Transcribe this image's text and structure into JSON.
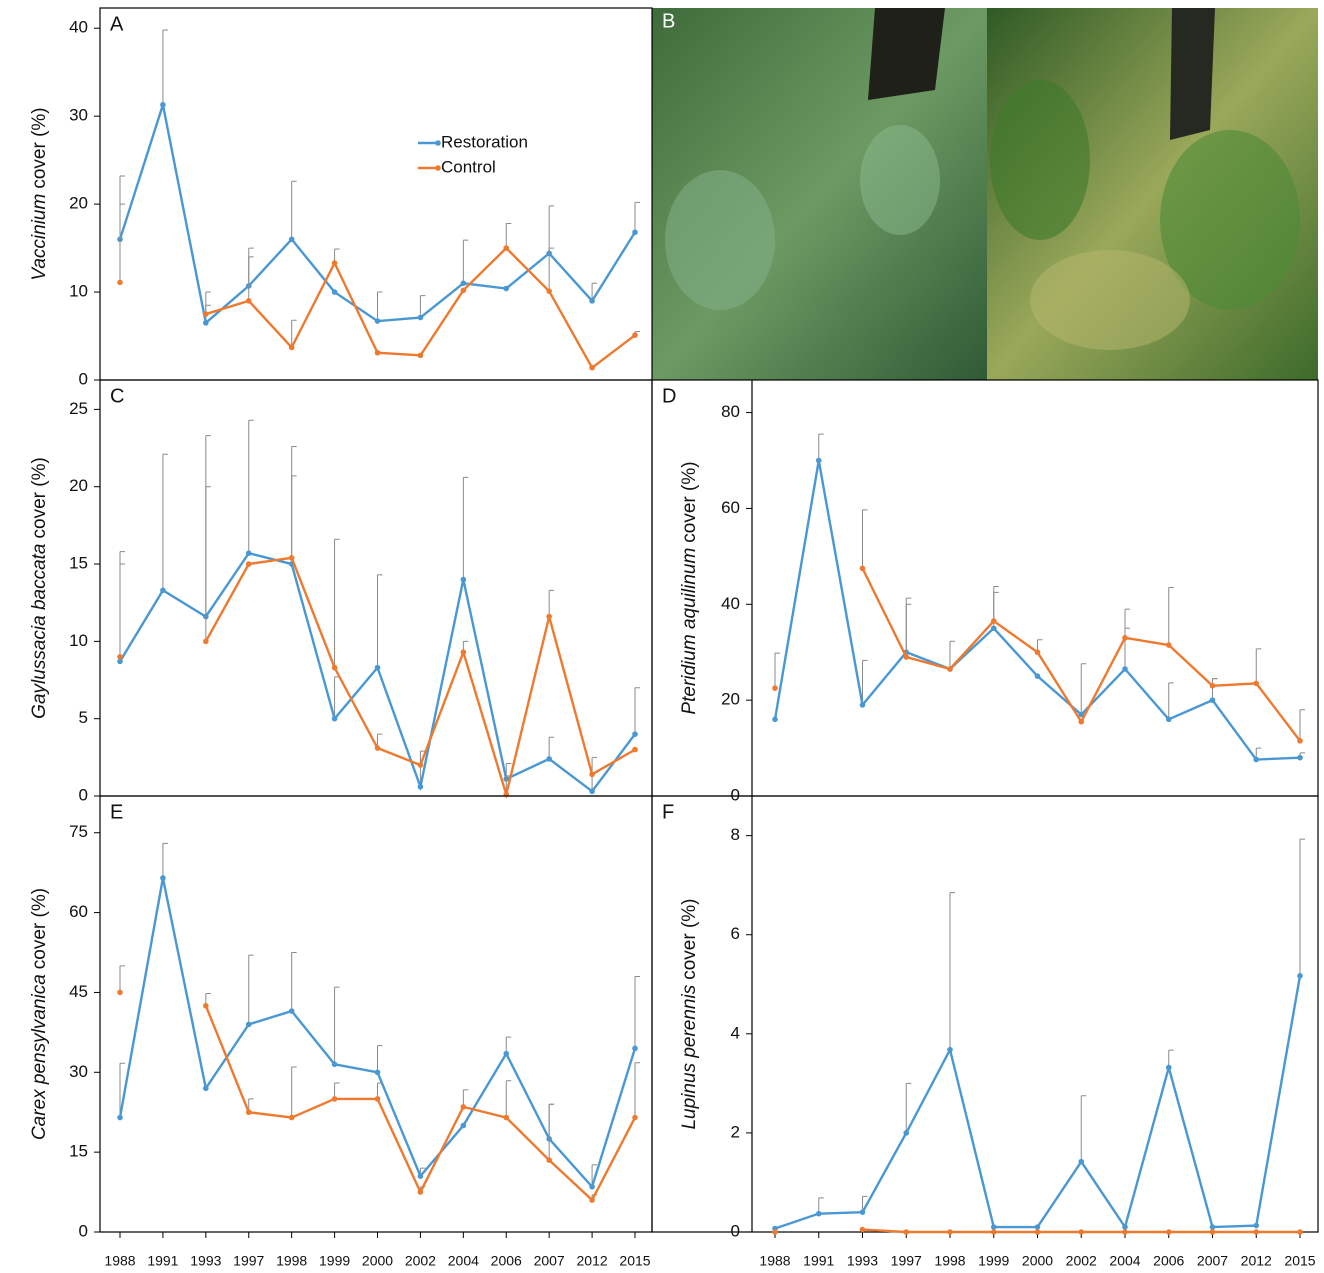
{
  "photo_panel": {
    "label": "B"
  },
  "chart_data": [
    {
      "type": "line",
      "label": "A",
      "ylabel_italic": "Vaccinium",
      "ylabel": "cover (%)",
      "ylim": [
        0,
        42.3
      ],
      "yticks": [
        0,
        10,
        20,
        30,
        40
      ],
      "legend": true,
      "series": [
        {
          "name": "Restoration",
          "color": "#4a98d3",
          "values": [
            16,
            31.3,
            6.5,
            10.7,
            16,
            10,
            6.7,
            7.1,
            11,
            10.4,
            14.4,
            9,
            16.8
          ],
          "errors": [
            7.2,
            8.5,
            3.5,
            4.3,
            6.6,
            null,
            3.3,
            2.5,
            4.9,
            null,
            5.4,
            2,
            3.4
          ]
        },
        {
          "name": "Control",
          "color": "#ee7a30",
          "values": [
            11.1,
            null,
            7.5,
            9,
            3.7,
            13.3,
            3.1,
            2.8,
            10.2,
            15,
            10.1,
            1.4,
            5.1
          ],
          "errors": [
            8.9,
            null,
            1,
            5,
            3.1,
            1.6,
            null,
            null,
            null,
            2.8,
            4.9,
            null,
            0.4
          ]
        }
      ]
    },
    {
      "type": "line",
      "label": "C",
      "ylabel_italic": "Gaylussacia baccata",
      "ylabel": "cover (%)",
      "ylim": [
        0,
        26.9
      ],
      "yticks": [
        0,
        5,
        10,
        15,
        20,
        25
      ],
      "legend": false,
      "series": [
        {
          "color": "#4a98d3",
          "values": [
            8.7,
            13.3,
            11.6,
            15.7,
            15,
            5,
            8.3,
            0.6,
            14,
            1.1,
            2.4,
            0.3,
            4
          ],
          "errors": [
            7.1,
            8.8,
            11.7,
            8.6,
            7.6,
            2.7,
            6,
            2.3,
            6.6,
            1,
            1.4,
            2.2,
            3
          ]
        },
        {
          "color": "#ee7a30",
          "values": [
            9,
            null,
            10,
            15,
            15.4,
            8.3,
            3.1,
            2,
            9.3,
            0.1,
            11.6,
            1.4,
            3
          ],
          "errors": [
            6,
            null,
            10,
            null,
            5.3,
            8.3,
            0.9,
            null,
            0.7,
            1.2,
            1.7,
            null,
            null
          ]
        }
      ]
    },
    {
      "type": "line",
      "label": "D",
      "ylabel_italic": "Pteridium aquilinum",
      "ylabel": "cover (%)",
      "ylim": [
        0,
        86.8
      ],
      "yticks": [
        0,
        20,
        40,
        60,
        80
      ],
      "legend": false,
      "series": [
        {
          "color": "#4a98d3",
          "values": [
            16,
            70,
            19,
            30,
            26.5,
            35,
            25,
            17,
            26.5,
            16,
            20,
            7.6,
            8
          ],
          "errors": [
            null,
            5.5,
            9.3,
            11.3,
            5.8,
            7.5,
            null,
            10.6,
            8.5,
            7.6,
            4.5,
            2.4,
            1
          ]
        },
        {
          "color": "#ee7a30",
          "values": [
            22.5,
            null,
            47.5,
            29,
            26.5,
            36.5,
            30,
            15.5,
            33,
            31.5,
            23,
            23.5,
            11.5
          ],
          "errors": [
            7.3,
            null,
            12.2,
            11,
            null,
            7.2,
            2.6,
            null,
            6,
            12,
            1.5,
            7.2,
            6.5
          ]
        }
      ]
    },
    {
      "type": "line",
      "label": "E",
      "ylabel_italic": "Carex pensylvanica",
      "ylabel": "cover (%)",
      "ylim": [
        0,
        81.9
      ],
      "yticks": [
        0,
        15,
        30,
        45,
        60,
        75
      ],
      "legend": false,
      "categories": [
        "1988",
        "1991",
        "1993",
        "1997",
        "1998",
        "1999",
        "2000",
        "2002",
        "2004",
        "2006",
        "2007",
        "2012",
        "2015"
      ],
      "series": [
        {
          "color": "#4a98d3",
          "values": [
            21.5,
            66.5,
            27,
            39,
            41.5,
            31.5,
            30,
            10.5,
            20,
            33.5,
            17.5,
            8.5,
            34.5
          ],
          "errors": [
            10.2,
            6.5,
            null,
            13,
            11,
            14.5,
            5,
            1.5,
            null,
            3.1,
            6.5,
            4.1,
            13.5
          ]
        },
        {
          "color": "#ee7a30",
          "values": [
            45,
            null,
            42.5,
            22.5,
            21.5,
            25,
            25,
            7.5,
            23.5,
            21.5,
            13.5,
            6,
            21.5
          ],
          "errors": [
            5,
            null,
            2.3,
            2.5,
            9.5,
            3,
            3,
            1,
            3.2,
            6.9,
            10.5,
            1,
            10.3
          ]
        }
      ]
    },
    {
      "type": "line",
      "label": "F",
      "ylabel_italic": "Lupinus perennis",
      "ylabel": "cover (%)",
      "ylim": [
        0,
        8.8
      ],
      "yticks": [
        0,
        2,
        4,
        6,
        8
      ],
      "legend": false,
      "categories": [
        "1988",
        "1991",
        "1993",
        "1997",
        "1998",
        "1999",
        "2000",
        "2002",
        "2004",
        "2006",
        "2007",
        "2012",
        "2015"
      ],
      "series": [
        {
          "color": "#4a98d3",
          "values": [
            0.07,
            0.37,
            0.4,
            2,
            3.68,
            0.1,
            0.1,
            1.42,
            0.1,
            3.32,
            0.1,
            0.13,
            5.17
          ],
          "errors": [
            null,
            0.32,
            0.32,
            1,
            3.17,
            null,
            null,
            1.33,
            null,
            0.35,
            null,
            null,
            2.76
          ]
        },
        {
          "color": "#ee7a30",
          "values": [
            0,
            null,
            0.05,
            0,
            0,
            0,
            0,
            0,
            0,
            0,
            0,
            0,
            0
          ],
          "errors": [
            null,
            null,
            null,
            null,
            null,
            null,
            null,
            null,
            null,
            null,
            null,
            null,
            null
          ]
        }
      ]
    }
  ]
}
